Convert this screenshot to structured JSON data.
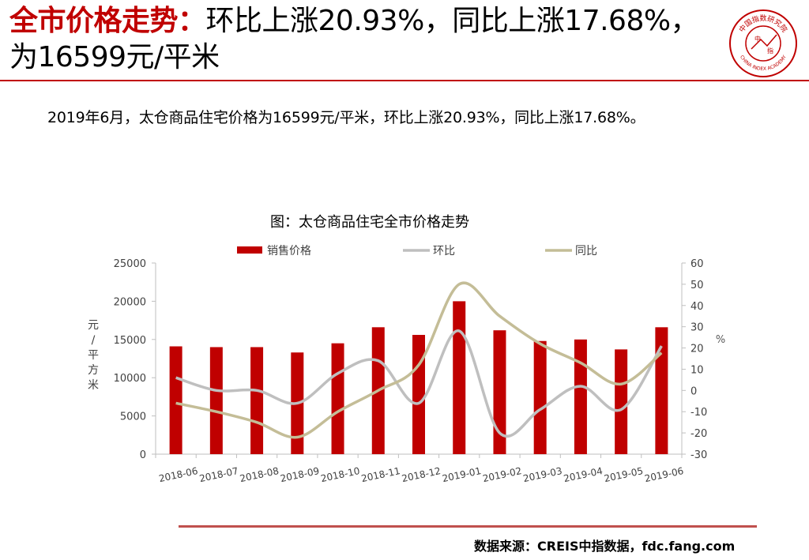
{
  "header": {
    "title_highlight": "全市价格走势：",
    "title_rest": "环比上涨20.93%，同比上涨17.68%，为16599元/平米"
  },
  "logo": {
    "icon": "china-index-academy-seal",
    "arc_text": "中国指数研究院",
    "center_chars": [
      "中",
      "指"
    ],
    "bottom_text": "CHINA INDEX ACADEMY"
  },
  "summary": "2019年6月，太仓商品住宅价格为16599元/平米，环比上涨20.93%，同比上涨17.68%。",
  "source": "数据来源：CREIS中指数据，fdc.fang.com",
  "colors": {
    "accent": "#c00000",
    "price_bar": "#c00000",
    "mom_line": "#bfbfbf",
    "yoy_line": "#c4bd97",
    "source_rule": "#c0504d"
  },
  "chart_data": {
    "type": "bar",
    "title": "图：太仓商品住宅全市价格走势",
    "categories": [
      "2018-06",
      "2018-07",
      "2018-08",
      "2018-09",
      "2018-10",
      "2018-11",
      "2018-12",
      "2019-01",
      "2019-02",
      "2019-03",
      "2019-04",
      "2019-05",
      "2019-06"
    ],
    "series": [
      {
        "name": "销售价格",
        "type": "bar",
        "axis": "left",
        "color": "#c00000",
        "values": [
          14100,
          14000,
          14000,
          13300,
          14500,
          16600,
          15600,
          20000,
          16200,
          14800,
          15000,
          13700,
          16599
        ]
      },
      {
        "name": "环比",
        "type": "line",
        "axis": "right",
        "color": "#bfbfbf",
        "values": [
          6,
          0,
          0,
          -6,
          8,
          14,
          -6,
          28,
          -20,
          -9,
          2,
          -9,
          20.93
        ]
      },
      {
        "name": "同比",
        "type": "line",
        "axis": "right",
        "color": "#c4bd97",
        "values": [
          -6,
          -10,
          -15,
          -22,
          -10,
          0,
          12,
          50,
          35,
          22,
          13,
          3,
          17.68
        ]
      }
    ],
    "ylabel_left": "元/平方米",
    "ylabel_right": "%",
    "ylim_left": [
      0,
      25000
    ],
    "yticks_left": [
      0,
      5000,
      10000,
      15000,
      20000,
      25000
    ],
    "ylim_right": [
      -30,
      60
    ],
    "yticks_right": [
      -30,
      -20,
      -10,
      0,
      10,
      20,
      30,
      40,
      50,
      60
    ],
    "legend": "top",
    "grid": false
  }
}
